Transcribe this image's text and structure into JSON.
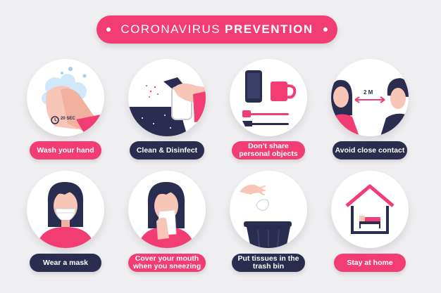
{
  "header": {
    "title_light": "CORONAVIRUS",
    "title_bold": "PREVENTION"
  },
  "colors": {
    "accent": "#f23c74",
    "navy": "#2a2d4f",
    "background": "#efeef0",
    "skin": "#f7c6b6"
  },
  "tiles": [
    {
      "label": "Wash your hand",
      "icon": "hand-washing-icon",
      "timer": "20 SEC"
    },
    {
      "label": "Clean & Disinfect",
      "icon": "spray-bottle-icon"
    },
    {
      "label": "Don’t share personal objects",
      "icon": "phone-mug-cutlery-icon"
    },
    {
      "label": "Avoid close contact",
      "icon": "social-distance-icon",
      "distance": "2 M"
    },
    {
      "label": "Wear a mask",
      "icon": "woman-with-mask-icon"
    },
    {
      "label": "Cover your mouth when you sneezing",
      "icon": "woman-sneezing-icon"
    },
    {
      "label": "Put tissues in the trash bin",
      "icon": "tissue-trash-bin-icon"
    },
    {
      "label": "Stay at home",
      "icon": "house-icon"
    }
  ]
}
